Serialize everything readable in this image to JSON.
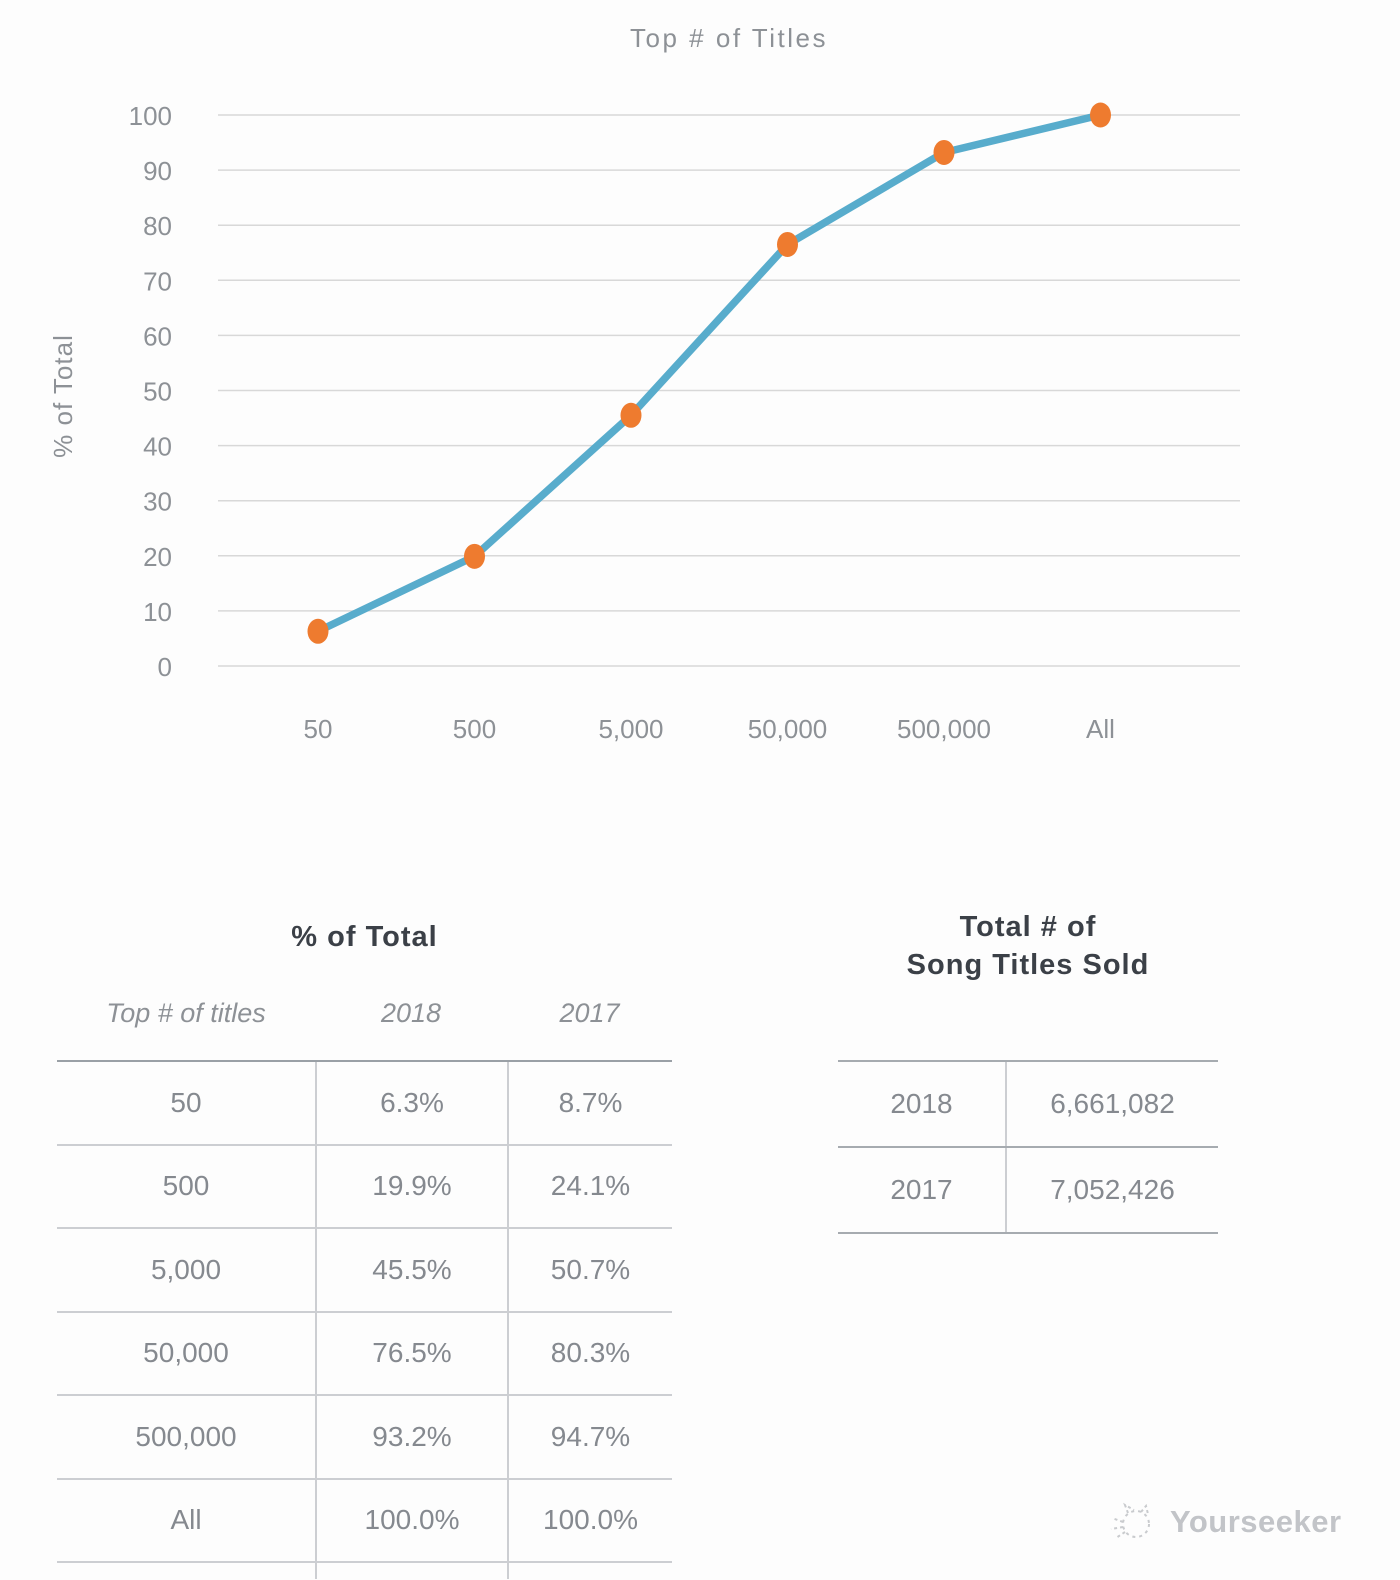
{
  "chart_data": {
    "type": "line",
    "title": "Top # of Titles",
    "xlabel": "",
    "ylabel": "% of Total",
    "categories": [
      "50",
      "500",
      "5,000",
      "50,000",
      "500,000",
      "All"
    ],
    "series": [
      {
        "name": "2018",
        "values": [
          6.3,
          19.9,
          45.5,
          76.5,
          93.2,
          100.0
        ]
      }
    ],
    "ylim": [
      0,
      100
    ],
    "ytick_step": 10,
    "grid": true,
    "legend_position": "none",
    "line_color": "#58ACCC",
    "marker_color": "#EE7B2F",
    "gridline_color": "#d8d8d8"
  },
  "left_table": {
    "title": "% of Total",
    "headers": [
      "Top # of titles",
      "2018",
      "2017"
    ],
    "rows": [
      {
        "label": "50",
        "pct2018": "6.3%",
        "pct2017": "8.7%"
      },
      {
        "label": "500",
        "pct2018": "19.9%",
        "pct2017": "24.1%"
      },
      {
        "label": "5,000",
        "pct2018": "45.5%",
        "pct2017": "50.7%"
      },
      {
        "label": "50,000",
        "pct2018": "76.5%",
        "pct2017": "80.3%"
      },
      {
        "label": "500,000",
        "pct2018": "93.2%",
        "pct2017": "94.7%"
      },
      {
        "label": "All",
        "pct2018": "100.0%",
        "pct2017": "100.0%"
      }
    ]
  },
  "right_table": {
    "title_line1": "Total # of",
    "title_line2": "Song Titles Sold",
    "rows": [
      {
        "label": "2018",
        "value": "6,661,082"
      },
      {
        "label": "2017",
        "value": "7,052,426"
      }
    ]
  },
  "watermark": {
    "label": "Yourseeker",
    "icon": "cat-sketch-icon"
  }
}
